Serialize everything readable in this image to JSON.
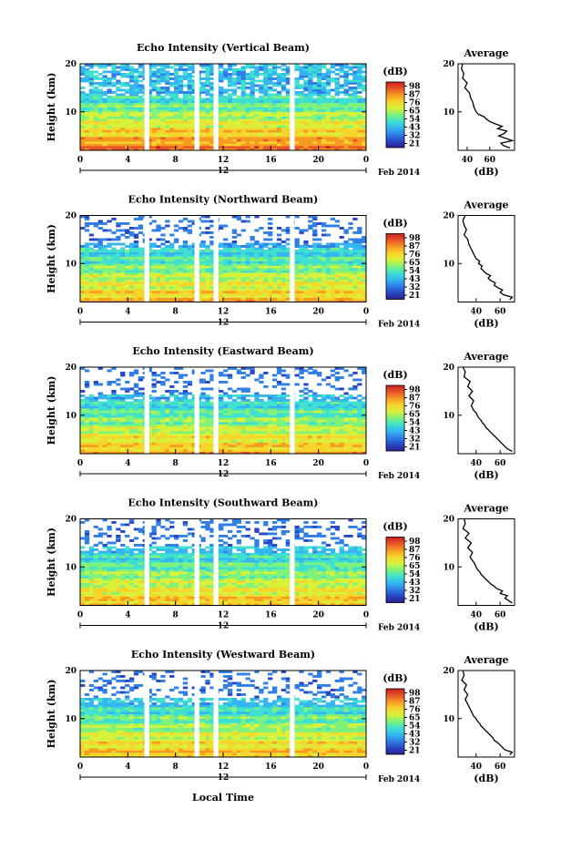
{
  "figure": {
    "x_axis_label": "Local Time",
    "date_label": "Feb 2014",
    "colorbar_unit": "(dB)",
    "colorbar_ticks": [
      "21",
      "32",
      "43",
      "54",
      "65",
      "76",
      "87",
      "98"
    ],
    "colormap": [
      "#2a1f8a",
      "#2747c8",
      "#2f7fe6",
      "#35b6f0",
      "#3fe0d0",
      "#7ef27a",
      "#d8f23c",
      "#f7d42a",
      "#f79a22",
      "#e8552a",
      "#c81e1e"
    ]
  },
  "chart_data": [
    {
      "type": "heatmap",
      "title": "Echo Intensity (Vertical Beam)",
      "ylabel": "Height (km)",
      "xlim": [
        0,
        24
      ],
      "ylim": [
        2,
        20
      ],
      "x_ticks": [
        "0",
        "4",
        "8",
        "12",
        "16",
        "20",
        "0"
      ],
      "day_marker": "12",
      "y_ticks": [
        "10",
        "20"
      ],
      "gaps_hours": [
        [
          5.4,
          5.8
        ],
        [
          9.6,
          10.0
        ],
        [
          11.2,
          11.6
        ],
        [
          17.6,
          18.0
        ]
      ],
      "profile": {
        "title": "Average",
        "xlabel": "(dB)",
        "xlim": [
          32,
          82
        ],
        "x_ticks": [
          "40",
          "60"
        ],
        "y_ticks": [
          "10",
          "20"
        ],
        "height_km": [
          2.5,
          3,
          3.5,
          4,
          4.5,
          5,
          5.5,
          6,
          6.5,
          7,
          7.5,
          8,
          8.5,
          9,
          9.5,
          10,
          10.5,
          11,
          12,
          13,
          14,
          15,
          16,
          17,
          18,
          19,
          20
        ],
        "intensity_db": [
          78,
          72,
          70,
          80,
          74,
          68,
          73,
          75,
          67,
          71,
          65,
          60,
          57,
          55,
          50,
          48,
          47,
          46,
          45,
          43,
          42,
          38,
          40,
          36,
          37,
          35,
          36
        ]
      }
    },
    {
      "type": "heatmap",
      "title": "Echo Intensity (Northward Beam)",
      "ylabel": "Height (km)",
      "xlim": [
        0,
        24
      ],
      "ylim": [
        2,
        20
      ],
      "x_ticks": [
        "0",
        "4",
        "8",
        "12",
        "16",
        "20",
        "0"
      ],
      "day_marker": "12",
      "y_ticks": [
        "10",
        "20"
      ],
      "gaps_hours": [
        [
          5.4,
          5.8
        ],
        [
          9.6,
          10.0
        ],
        [
          11.2,
          11.6
        ],
        [
          17.6,
          18.0
        ]
      ],
      "profile": {
        "title": "Average",
        "xlabel": "(dB)",
        "xlim": [
          25,
          72
        ],
        "x_ticks": [
          "40",
          "60"
        ],
        "y_ticks": [
          "10",
          "20"
        ],
        "height_km": [
          2.5,
          3,
          3.5,
          4,
          4.5,
          5,
          5.5,
          6,
          6.5,
          7,
          7.5,
          8,
          8.5,
          9,
          9.5,
          10,
          10.5,
          11,
          12,
          13,
          14,
          15,
          16,
          17,
          18,
          19,
          20
        ],
        "intensity_db": [
          68,
          70,
          63,
          60,
          62,
          58,
          55,
          56,
          52,
          50,
          52,
          48,
          46,
          44,
          45,
          42,
          43,
          40,
          38,
          36,
          34,
          33,
          30,
          32,
          30,
          29,
          31
        ]
      }
    },
    {
      "type": "heatmap",
      "title": "Echo Intensity (Eastward Beam)",
      "ylabel": "Height (km)",
      "xlim": [
        0,
        24
      ],
      "ylim": [
        2,
        20
      ],
      "x_ticks": [
        "0",
        "4",
        "8",
        "12",
        "16",
        "20",
        "0"
      ],
      "day_marker": "12",
      "y_ticks": [
        "10",
        "20"
      ],
      "gaps_hours": [
        [
          5.4,
          5.8
        ],
        [
          9.6,
          10.0
        ],
        [
          11.2,
          11.6
        ],
        [
          17.6,
          18.0
        ]
      ],
      "profile": {
        "title": "Average",
        "xlabel": "(dB)",
        "xlim": [
          25,
          72
        ],
        "x_ticks": [
          "40",
          "60"
        ],
        "y_ticks": [
          "10",
          "20"
        ],
        "height_km": [
          2.5,
          3,
          3.5,
          4,
          4.5,
          5,
          5.5,
          6,
          6.5,
          7,
          7.5,
          8,
          8.5,
          9,
          9.5,
          10,
          10.5,
          11,
          12,
          13,
          14,
          15,
          16,
          17,
          18,
          19,
          20
        ],
        "intensity_db": [
          70,
          66,
          64,
          62,
          60,
          58,
          56,
          54,
          52,
          50,
          48,
          47,
          45,
          44,
          42,
          41,
          40,
          38,
          36,
          38,
          34,
          37,
          33,
          35,
          30,
          31,
          29
        ]
      }
    },
    {
      "type": "heatmap",
      "title": "Echo Intensity (Southward Beam)",
      "ylabel": "Height (km)",
      "xlim": [
        0,
        24
      ],
      "ylim": [
        2,
        20
      ],
      "x_ticks": [
        "0",
        "4",
        "8",
        "12",
        "16",
        "20",
        "0"
      ],
      "day_marker": "12",
      "y_ticks": [
        "10",
        "20"
      ],
      "gaps_hours": [
        [
          5.4,
          5.8
        ],
        [
          9.6,
          10.0
        ],
        [
          11.2,
          11.6
        ],
        [
          17.6,
          18.0
        ]
      ],
      "profile": {
        "title": "Average",
        "xlabel": "(dB)",
        "xlim": [
          25,
          72
        ],
        "x_ticks": [
          "40",
          "60"
        ],
        "y_ticks": [
          "10",
          "20"
        ],
        "height_km": [
          2.5,
          3,
          3.5,
          4,
          4.5,
          5,
          5.5,
          6,
          6.5,
          7,
          7.5,
          8,
          8.5,
          9,
          9.5,
          10,
          10.5,
          11,
          12,
          13,
          14,
          15,
          16,
          17,
          18,
          19,
          20
        ],
        "intensity_db": [
          70,
          67,
          64,
          66,
          60,
          62,
          57,
          55,
          52,
          50,
          48,
          46,
          44,
          43,
          41,
          40,
          39,
          38,
          35,
          37,
          33,
          36,
          31,
          34,
          29,
          31,
          30
        ]
      }
    },
    {
      "type": "heatmap",
      "title": "Echo Intensity (Westward Beam)",
      "ylabel": "Height (km)",
      "xlim": [
        0,
        24
      ],
      "ylim": [
        2,
        20
      ],
      "x_ticks": [
        "0",
        "4",
        "8",
        "12",
        "16",
        "20",
        "0"
      ],
      "day_marker": "12",
      "y_ticks": [
        "10",
        "20"
      ],
      "gaps_hours": [
        [
          5.4,
          5.8
        ],
        [
          9.6,
          10.0
        ],
        [
          11.2,
          11.6
        ],
        [
          17.6,
          18.0
        ]
      ],
      "profile": {
        "title": "Average",
        "xlabel": "(dB)",
        "xlim": [
          25,
          72
        ],
        "x_ticks": [
          "40",
          "60"
        ],
        "y_ticks": [
          "10",
          "20"
        ],
        "height_km": [
          2.5,
          3,
          3.5,
          4,
          4.5,
          5,
          5.5,
          6,
          6.5,
          7,
          7.5,
          8,
          8.5,
          9,
          9.5,
          10,
          10.5,
          11,
          12,
          13,
          14,
          15,
          16,
          17,
          18,
          19,
          20
        ],
        "intensity_db": [
          68,
          70,
          64,
          62,
          60,
          58,
          55,
          54,
          52,
          50,
          48,
          46,
          44,
          43,
          41,
          40,
          38,
          37,
          35,
          33,
          31,
          33,
          30,
          32,
          28,
          30,
          29
        ]
      }
    }
  ]
}
